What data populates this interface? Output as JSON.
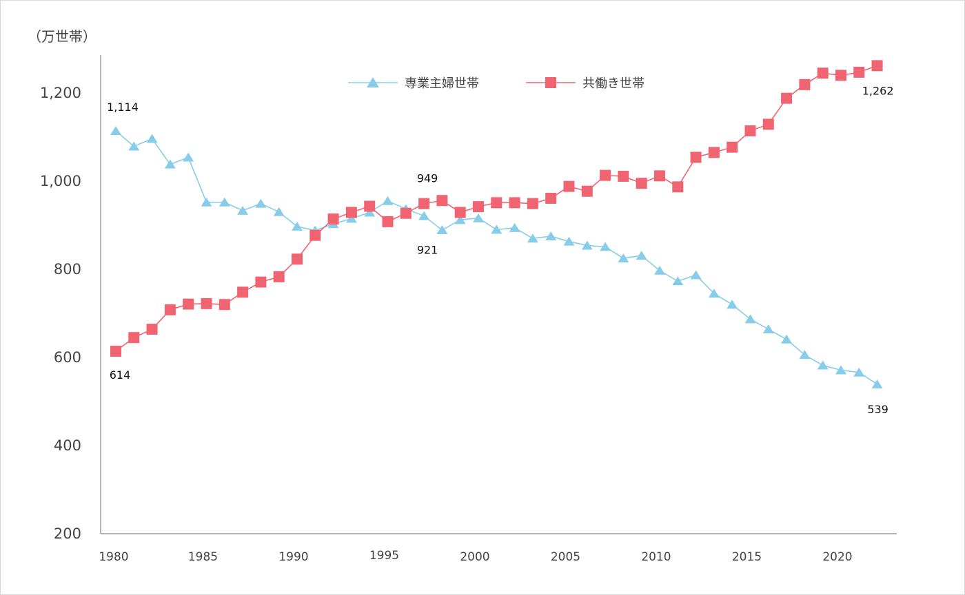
{
  "chart_data": {
    "type": "line",
    "unit_label": "（万世帯）",
    "ylim": [
      200,
      1300
    ],
    "y_ticks": [
      "200",
      "400",
      "600",
      "800",
      "1,000",
      "1,200"
    ],
    "y_tick_values": [
      200,
      400,
      600,
      800,
      1000,
      1200
    ],
    "x": [
      1980,
      1981,
      1982,
      1983,
      1984,
      1985,
      1986,
      1987,
      1988,
      1989,
      1990,
      1991,
      1992,
      1993,
      1994,
      1995,
      1996,
      1997,
      1998,
      1999,
      2000,
      2001,
      2002,
      2003,
      2004,
      2005,
      2006,
      2007,
      2008,
      2009,
      2010,
      2011,
      2012,
      2013,
      2014,
      2015,
      2016,
      2017,
      2018,
      2019,
      2020,
      2021,
      2022
    ],
    "x_ticks": [
      "1980",
      "1985",
      "1990",
      "1995",
      "2000",
      "2005",
      "2010",
      "2015",
      "2020"
    ],
    "x_tick_values": [
      1980,
      1985,
      1990,
      1995,
      2000,
      2005,
      2010,
      2015,
      2020
    ],
    "legend_position": "top-center",
    "series": [
      {
        "name": "専業主婦世帯",
        "color": "#87cdea",
        "marker": "triangle",
        "values": [
          1114,
          1079,
          1096,
          1038,
          1054,
          952,
          952,
          933,
          949,
          930,
          897,
          888,
          903,
          915,
          929,
          955,
          937,
          921,
          889,
          912,
          916,
          890,
          894,
          870,
          875,
          863,
          854,
          851,
          825,
          831,
          797,
          773,
          787,
          745,
          720,
          687,
          664,
          641,
          606,
          582,
          571,
          566,
          539
        ]
      },
      {
        "name": "共働き世帯",
        "color": "#ef6470",
        "marker": "square",
        "values": [
          614,
          645,
          664,
          708,
          721,
          722,
          720,
          748,
          771,
          783,
          823,
          877,
          914,
          929,
          943,
          908,
          927,
          949,
          956,
          929,
          942,
          951,
          951,
          949,
          961,
          988,
          977,
          1013,
          1011,
          995,
          1012,
          987,
          1054,
          1065,
          1077,
          1114,
          1129,
          1188,
          1219,
          1245,
          1240,
          1247,
          1262
        ]
      }
    ],
    "annotations": [
      {
        "text": "1,114",
        "series": 0,
        "x": 1980
      },
      {
        "text": "614",
        "series": 1,
        "x": 1980
      },
      {
        "text": "949",
        "series": 1,
        "x": 1997
      },
      {
        "text": "921",
        "series": 0,
        "x": 1997
      },
      {
        "text": "1,262",
        "series": 1,
        "x": 2022
      },
      {
        "text": "539",
        "series": 0,
        "x": 2022
      }
    ]
  }
}
